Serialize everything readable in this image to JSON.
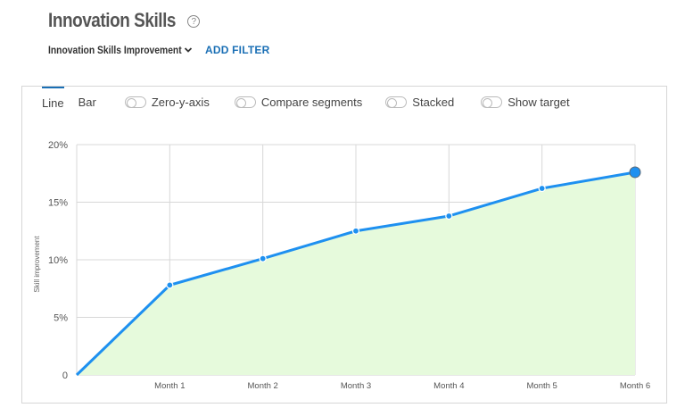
{
  "page": {
    "title": "Innovation Skills",
    "help_icon": "question-circle-icon",
    "metric_selector": "Innovation Skills Improvement",
    "add_filter_label": "ADD FILTER"
  },
  "toolbar": {
    "tabs": [
      {
        "label": "Line",
        "active": true
      },
      {
        "label": "Bar",
        "active": false
      }
    ],
    "toggles": [
      {
        "label": "Zero-y-axis",
        "on": false
      },
      {
        "label": "Compare segments",
        "on": false
      },
      {
        "label": "Stacked",
        "on": false
      },
      {
        "label": "Show target",
        "on": false
      }
    ]
  },
  "colors": {
    "line": "#1e90f0",
    "area": "#e6fadc",
    "accent": "#1a6fb5"
  },
  "chart_data": {
    "type": "area",
    "x": [
      "",
      "Month 1",
      "Month 2",
      "Month 3",
      "Month 4",
      "Month 5",
      "Month 6"
    ],
    "series": [
      {
        "values": [
          0,
          7.8,
          10.1,
          12.5,
          13.8,
          16.2,
          17.6
        ]
      }
    ],
    "ylabel": "Skill improvement",
    "ylim": [
      0,
      20
    ],
    "yticks": [
      "0",
      "5%",
      "10%",
      "15%",
      "20%"
    ],
    "grid": true,
    "legend": "none"
  }
}
